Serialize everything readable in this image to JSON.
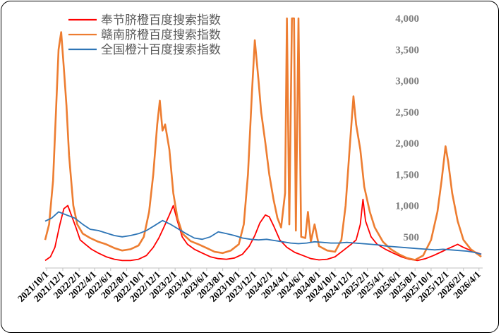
{
  "chart_data": {
    "type": "line",
    "title": "",
    "xlabel": "",
    "ylabel": "",
    "ylim": [
      0,
      4000
    ],
    "yticks": [
      "",
      "500",
      "1,000",
      "1,500",
      "2,000",
      "2,500",
      "3,000",
      "3,500",
      "4,000"
    ],
    "y_axis_side": "right",
    "grid": false,
    "legend_position": "top-left",
    "x_range": [
      "2021-09-25",
      "2026-04-15"
    ],
    "xticks": [
      "2021/10/1",
      "2021/12/1",
      "2022/2/1",
      "2022/4/1",
      "2022/6/1",
      "2022/8/1",
      "2022/10/1",
      "2022/12/1",
      "2023/2/1",
      "2023/4/1",
      "2023/6/1",
      "2023/8/1",
      "2023/10/1",
      "2023/12/1",
      "2024/2/1",
      "2024/4/1",
      "2024/6/1",
      "2024/8/1",
      "2024/10/1",
      "2024/12/1",
      "2025/2/1",
      "2025/4/1",
      "2025/6/1",
      "2025/8/1",
      "2025/10/1",
      "2025/12/1",
      "2026/2/1",
      "2026/4/1"
    ],
    "series": [
      {
        "name": "奉节脐橙百度搜索指数",
        "color": "#ff0000",
        "points": [
          [
            "2021-09-25",
            120
          ],
          [
            "2021-10-15",
            180
          ],
          [
            "2021-11-01",
            330
          ],
          [
            "2021-11-20",
            700
          ],
          [
            "2021-12-05",
            950
          ],
          [
            "2021-12-20",
            1000
          ],
          [
            "2022-01-05",
            820
          ],
          [
            "2022-01-20",
            650
          ],
          [
            "2022-02-05",
            450
          ],
          [
            "2022-02-25",
            380
          ],
          [
            "2022-03-20",
            300
          ],
          [
            "2022-04-15",
            240
          ],
          [
            "2022-05-15",
            180
          ],
          [
            "2022-06-15",
            140
          ],
          [
            "2022-07-15",
            120
          ],
          [
            "2022-08-15",
            120
          ],
          [
            "2022-09-15",
            140
          ],
          [
            "2022-10-15",
            200
          ],
          [
            "2022-11-10",
            330
          ],
          [
            "2022-12-01",
            480
          ],
          [
            "2022-12-20",
            650
          ],
          [
            "2023-01-10",
            850
          ],
          [
            "2023-01-25",
            1000
          ],
          [
            "2023-02-10",
            750
          ],
          [
            "2023-02-28",
            500
          ],
          [
            "2023-03-20",
            380
          ],
          [
            "2023-04-15",
            300
          ],
          [
            "2023-05-15",
            240
          ],
          [
            "2023-06-15",
            180
          ],
          [
            "2023-07-15",
            150
          ],
          [
            "2023-08-15",
            140
          ],
          [
            "2023-09-15",
            160
          ],
          [
            "2023-10-15",
            220
          ],
          [
            "2023-11-10",
            350
          ],
          [
            "2023-12-01",
            520
          ],
          [
            "2023-12-20",
            720
          ],
          [
            "2024-01-10",
            850
          ],
          [
            "2024-01-25",
            820
          ],
          [
            "2024-02-10",
            680
          ],
          [
            "2024-03-05",
            450
          ],
          [
            "2024-04-01",
            330
          ],
          [
            "2024-05-01",
            250
          ],
          [
            "2024-06-01",
            200
          ],
          [
            "2024-07-01",
            150
          ],
          [
            "2024-08-01",
            130
          ],
          [
            "2024-09-01",
            140
          ],
          [
            "2024-10-01",
            180
          ],
          [
            "2024-11-01",
            280
          ],
          [
            "2024-12-01",
            380
          ],
          [
            "2024-12-20",
            450
          ],
          [
            "2025-01-05",
            700
          ],
          [
            "2025-01-15",
            1100
          ],
          [
            "2025-01-25",
            750
          ],
          [
            "2025-02-15",
            500
          ],
          [
            "2025-03-10",
            380
          ],
          [
            "2025-04-10",
            300
          ],
          [
            "2025-05-10",
            240
          ],
          [
            "2025-06-10",
            180
          ],
          [
            "2025-07-10",
            140
          ],
          [
            "2025-08-10",
            120
          ],
          [
            "2025-09-10",
            150
          ],
          [
            "2025-10-10",
            200
          ],
          [
            "2025-11-10",
            260
          ],
          [
            "2025-12-10",
            320
          ],
          [
            "2026-01-10",
            380
          ],
          [
            "2026-02-01",
            330
          ],
          [
            "2026-03-01",
            280
          ],
          [
            "2026-04-10",
            220
          ]
        ]
      },
      {
        "name": "赣南脐橙百度搜索指数",
        "color": "#ed7d31",
        "points": [
          [
            "2021-09-25",
            450
          ],
          [
            "2021-10-10",
            700
          ],
          [
            "2021-10-25",
            1400
          ],
          [
            "2021-11-05",
            2500
          ],
          [
            "2021-11-15",
            3500
          ],
          [
            "2021-11-25",
            3780
          ],
          [
            "2021-12-05",
            3200
          ],
          [
            "2021-12-15",
            2600
          ],
          [
            "2021-12-25",
            1800
          ],
          [
            "2022-01-10",
            1000
          ],
          [
            "2022-01-25",
            700
          ],
          [
            "2022-02-15",
            550
          ],
          [
            "2022-03-15",
            480
          ],
          [
            "2022-04-15",
            420
          ],
          [
            "2022-05-15",
            380
          ],
          [
            "2022-06-15",
            320
          ],
          [
            "2022-07-15",
            280
          ],
          [
            "2022-08-15",
            300
          ],
          [
            "2022-09-15",
            360
          ],
          [
            "2022-10-05",
            500
          ],
          [
            "2022-10-25",
            900
          ],
          [
            "2022-11-10",
            1500
          ],
          [
            "2022-11-25",
            2300
          ],
          [
            "2022-12-05",
            2680
          ],
          [
            "2022-12-15",
            2200
          ],
          [
            "2022-12-25",
            2300
          ],
          [
            "2023-01-10",
            1900
          ],
          [
            "2023-01-25",
            1200
          ],
          [
            "2023-02-10",
            800
          ],
          [
            "2023-03-01",
            550
          ],
          [
            "2023-04-01",
            430
          ],
          [
            "2023-05-01",
            380
          ],
          [
            "2023-06-01",
            320
          ],
          [
            "2023-07-01",
            260
          ],
          [
            "2023-08-01",
            240
          ],
          [
            "2023-09-01",
            280
          ],
          [
            "2023-10-01",
            380
          ],
          [
            "2023-10-20",
            700
          ],
          [
            "2023-11-05",
            1500
          ],
          [
            "2023-11-20",
            2800
          ],
          [
            "2023-12-01",
            3650
          ],
          [
            "2023-12-15",
            3000
          ],
          [
            "2023-12-25",
            2500
          ],
          [
            "2024-01-10",
            2000
          ],
          [
            "2024-01-25",
            1500
          ],
          [
            "2024-02-10",
            1100
          ],
          [
            "2024-02-25",
            800
          ],
          [
            "2024-03-10",
            650
          ],
          [
            "2024-03-25",
            1200
          ],
          [
            "2024-04-01",
            4000
          ],
          [
            "2024-04-10",
            700
          ],
          [
            "2024-04-20",
            4000
          ],
          [
            "2024-04-28",
            4000
          ],
          [
            "2024-05-05",
            600
          ],
          [
            "2024-05-15",
            4000
          ],
          [
            "2024-05-25",
            500
          ],
          [
            "2024-06-10",
            480
          ],
          [
            "2024-06-20",
            900
          ],
          [
            "2024-07-01",
            420
          ],
          [
            "2024-07-15",
            700
          ],
          [
            "2024-08-01",
            350
          ],
          [
            "2024-09-01",
            280
          ],
          [
            "2024-10-01",
            260
          ],
          [
            "2024-10-25",
            450
          ],
          [
            "2024-11-10",
            1000
          ],
          [
            "2024-11-25",
            1900
          ],
          [
            "2024-12-10",
            2750
          ],
          [
            "2024-12-20",
            2300
          ],
          [
            "2025-01-05",
            1900
          ],
          [
            "2025-01-20",
            1300
          ],
          [
            "2025-02-10",
            900
          ],
          [
            "2025-03-01",
            650
          ],
          [
            "2025-04-01",
            420
          ],
          [
            "2025-05-01",
            300
          ],
          [
            "2025-06-01",
            220
          ],
          [
            "2025-07-01",
            160
          ],
          [
            "2025-08-01",
            130
          ],
          [
            "2025-09-01",
            200
          ],
          [
            "2025-10-01",
            450
          ],
          [
            "2025-10-25",
            900
          ],
          [
            "2025-11-10",
            1400
          ],
          [
            "2025-11-25",
            1950
          ],
          [
            "2025-12-05",
            1700
          ],
          [
            "2025-12-20",
            1200
          ],
          [
            "2026-01-10",
            750
          ],
          [
            "2026-02-01",
            450
          ],
          [
            "2026-03-01",
            300
          ],
          [
            "2026-04-10",
            180
          ]
        ]
      },
      {
        "name": "全国橙汁百度搜索指数",
        "color": "#2e75b6",
        "points": [
          [
            "2021-09-25",
            750
          ],
          [
            "2021-10-20",
            800
          ],
          [
            "2021-11-15",
            900
          ],
          [
            "2021-12-15",
            850
          ],
          [
            "2022-01-15",
            800
          ],
          [
            "2022-02-15",
            700
          ],
          [
            "2022-03-15",
            620
          ],
          [
            "2022-04-15",
            600
          ],
          [
            "2022-05-15",
            560
          ],
          [
            "2022-06-15",
            520
          ],
          [
            "2022-07-15",
            500
          ],
          [
            "2022-08-15",
            520
          ],
          [
            "2022-09-15",
            550
          ],
          [
            "2022-10-15",
            600
          ],
          [
            "2022-11-15",
            680
          ],
          [
            "2022-12-15",
            760
          ],
          [
            "2023-01-15",
            700
          ],
          [
            "2023-02-15",
            620
          ],
          [
            "2023-03-15",
            550
          ],
          [
            "2023-04-15",
            480
          ],
          [
            "2023-05-15",
            460
          ],
          [
            "2023-06-15",
            500
          ],
          [
            "2023-07-15",
            580
          ],
          [
            "2023-08-15",
            550
          ],
          [
            "2023-09-15",
            520
          ],
          [
            "2023-10-15",
            480
          ],
          [
            "2023-11-15",
            460
          ],
          [
            "2023-12-15",
            450
          ],
          [
            "2024-01-15",
            460
          ],
          [
            "2024-02-15",
            440
          ],
          [
            "2024-03-15",
            420
          ],
          [
            "2024-04-15",
            400
          ],
          [
            "2024-05-15",
            390
          ],
          [
            "2024-06-15",
            400
          ],
          [
            "2024-07-15",
            420
          ],
          [
            "2024-08-15",
            410
          ],
          [
            "2024-09-15",
            400
          ],
          [
            "2024-10-15",
            400
          ],
          [
            "2024-11-15",
            410
          ],
          [
            "2024-12-15",
            400
          ],
          [
            "2025-01-15",
            390
          ],
          [
            "2025-02-15",
            380
          ],
          [
            "2025-03-15",
            370
          ],
          [
            "2025-04-15",
            350
          ],
          [
            "2025-05-15",
            340
          ],
          [
            "2025-06-15",
            330
          ],
          [
            "2025-07-15",
            320
          ],
          [
            "2025-08-15",
            310
          ],
          [
            "2025-09-15",
            300
          ],
          [
            "2025-10-15",
            290
          ],
          [
            "2025-11-15",
            300
          ],
          [
            "2025-12-15",
            290
          ],
          [
            "2026-01-15",
            280
          ],
          [
            "2026-02-15",
            270
          ],
          [
            "2026-03-15",
            250
          ],
          [
            "2026-04-10",
            220
          ]
        ]
      }
    ]
  }
}
